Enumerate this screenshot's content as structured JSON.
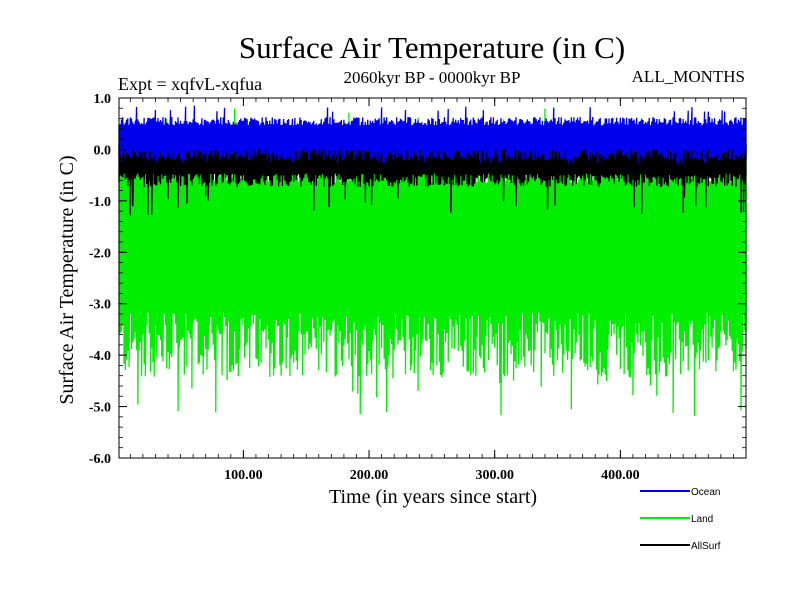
{
  "chart_data": {
    "type": "line",
    "title": "Surface Air Temperature (in C)",
    "subtitle": "2060kyr BP - 0000kyr BP",
    "experiment_label": "Expt = xqfvL-xqfua",
    "months_label": "ALL_MONTHS",
    "xlabel": "Time (in years since start)",
    "ylabel": "Surface Air Temperature (in C)",
    "xlim": [
      1,
      500
    ],
    "ylim": [
      -6.0,
      1.0
    ],
    "x_ticks": [
      100,
      200,
      300,
      400
    ],
    "x_tick_labels": [
      "100.00",
      "200.00",
      "300.00",
      "400.00"
    ],
    "y_ticks": [
      1.0,
      0.0,
      -1.0,
      -2.0,
      -3.0,
      -4.0,
      -5.0,
      -6.0
    ],
    "y_tick_labels": [
      "1.0",
      "0.0",
      "-1.0",
      "-2.0",
      "-3.0",
      "-4.0",
      "-5.0",
      "-6.0"
    ],
    "series": [
      {
        "name": "Land",
        "color": "#00ee00",
        "min": -5.2,
        "max": 0.85,
        "typical_low": -3.8,
        "typical_high": -0.2
      },
      {
        "name": "AllSurf",
        "color": "#000000",
        "min": -1.3,
        "max": 0.35,
        "typical_low": -0.6,
        "typical_high": 0.15
      },
      {
        "name": "Ocean",
        "color": "#0000ee",
        "min": -0.3,
        "max": 0.85,
        "typical_low": -0.1,
        "typical_high": 0.55
      }
    ],
    "legend": [
      "Ocean",
      "Land",
      "AllSurf"
    ],
    "legend_position": "bottom-right"
  }
}
